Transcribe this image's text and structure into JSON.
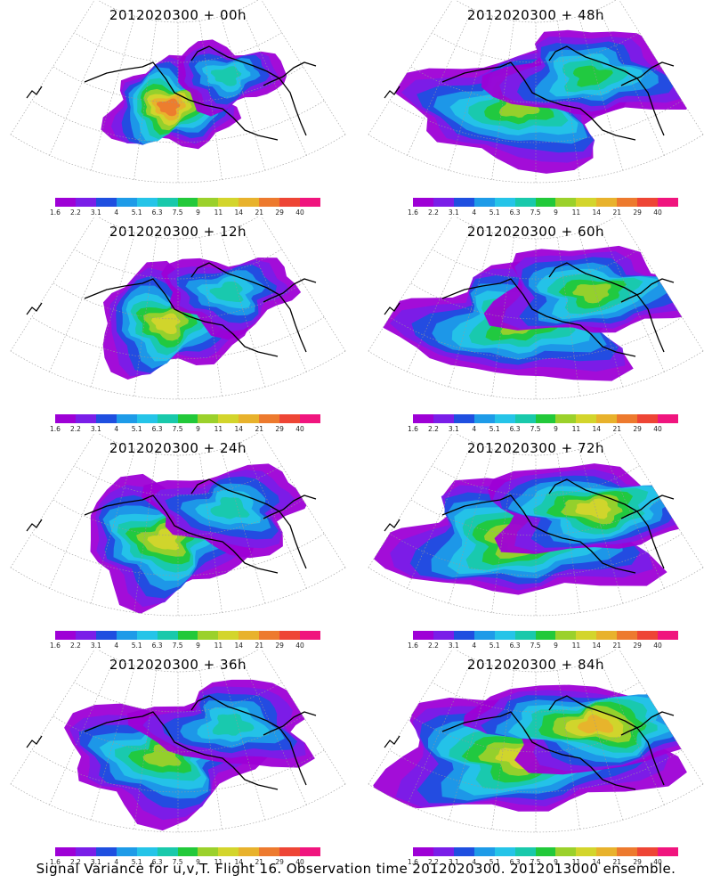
{
  "caption": "Signal Variance for u,v,T. Flight 16. Observation time 2012020300. 2012013000 ensemble.",
  "chart_data": {
    "type": "heatmap",
    "colorbar": {
      "ticks": [
        "1.6",
        "2.2",
        "3.1",
        "4",
        "5.1",
        "6.3",
        "7.5",
        "9",
        "11",
        "14",
        "21",
        "29",
        "40"
      ],
      "colors": [
        "#9e00d6",
        "#7a1ee8",
        "#1f4fe0",
        "#1e9be8",
        "#25c4e8",
        "#19c9ab",
        "#22c93a",
        "#9bd12b",
        "#d3d52c",
        "#e8b22c",
        "#ed7a2e",
        "#ee4535",
        "#f0157e"
      ]
    },
    "panels": [
      {
        "title": "2012020300 + 00h",
        "lead_hours": 0,
        "max_level": 11
      },
      {
        "title": "2012020300 + 12h",
        "lead_hours": 12,
        "max_level": 9
      },
      {
        "title": "2012020300 + 24h",
        "lead_hours": 24,
        "max_level": 9
      },
      {
        "title": "2012020300 + 36h",
        "lead_hours": 36,
        "max_level": 8
      },
      {
        "title": "2012020300 + 48h",
        "lead_hours": 48,
        "max_level": 8
      },
      {
        "title": "2012020300 + 60h",
        "lead_hours": 60,
        "max_level": 8
      },
      {
        "title": "2012020300 + 72h",
        "lead_hours": 72,
        "max_level": 9
      },
      {
        "title": "2012020300 + 84h",
        "lead_hours": 84,
        "max_level": 9
      }
    ]
  }
}
